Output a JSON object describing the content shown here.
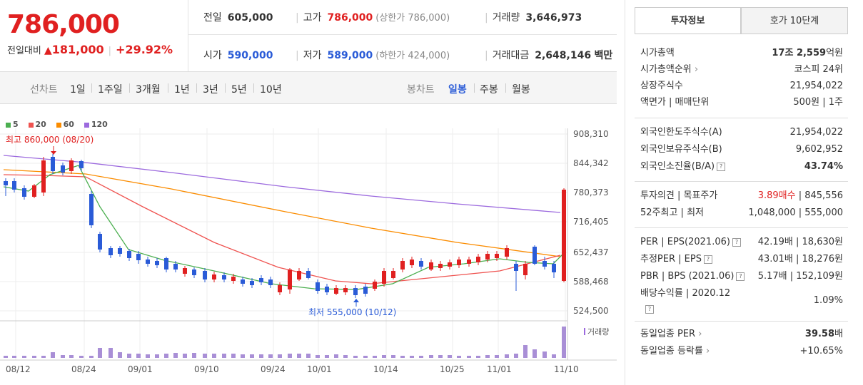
{
  "header": {
    "price": "786,000",
    "change_label": "전일대비",
    "change_amount": "181,000",
    "change_pct": "+29.92%",
    "prev_label": "전일",
    "prev_value": "605,000",
    "high_label": "고가",
    "high_value": "786,000",
    "upper_limit": "(상한가 786,000)",
    "volume_label": "거래량",
    "volume_value": "3,646,973",
    "open_label": "시가",
    "open_value": "590,000",
    "low_label": "저가",
    "low_value": "589,000",
    "lower_limit": "(하한가 424,000)",
    "amount_label": "거래대금",
    "amount_value": "2,648,146",
    "amount_unit": "백만"
  },
  "period_bar": {
    "line_label": "선차트",
    "periods": [
      "1일",
      "1주일",
      "3개월",
      "1년",
      "3년",
      "5년",
      "10년"
    ],
    "candle_label": "봉차트",
    "candles": [
      "일봉",
      "주봉",
      "월봉"
    ],
    "active_candle": "일봉"
  },
  "legend": [
    {
      "label": "5",
      "color": "#4caf50"
    },
    {
      "label": "20",
      "color": "#ef5350"
    },
    {
      "label": "60",
      "color": "#fb8c00"
    },
    {
      "label": "120",
      "color": "#9c6ade"
    }
  ],
  "chart_data": {
    "type": "candlestick",
    "y_ticks": [
      "908,310",
      "844,342",
      "780,373",
      "716,405",
      "652,437",
      "588,468",
      "524,500"
    ],
    "x_ticks": [
      "08/12",
      "08/24",
      "09/01",
      "09/10",
      "09/24",
      "10/01",
      "10/14",
      "10/25",
      "11/01",
      "11/10"
    ],
    "high_annotation": "최고 860,000 (08/20)",
    "low_annotation": "최저 555,000 (10/12)",
    "volume_label": "거래량",
    "colors": {
      "up": "#e02020",
      "down": "#2a5bd7"
    }
  },
  "panel": {
    "tab_invest": "투자정보",
    "tab_quote": "호가 10단계",
    "rows": [
      {
        "k": "시가총액",
        "v_bold": "17조 2,559",
        "v": "억원"
      },
      {
        "k": "시가총액순위",
        "arrow": "›",
        "v": "코스피 24위"
      },
      {
        "k": "상장주식수",
        "v": "21,954,022"
      },
      {
        "k": "액면가 | 매매단위",
        "v": "500원 | 1주"
      },
      {
        "k": "외국인한도주식수(A)",
        "v": "21,954,022"
      },
      {
        "k": "외국인보유주식수(B)",
        "v": "9,602,952"
      },
      {
        "k": "외국인소진율(B/A)",
        "q": "?",
        "v_bold": "43.74%"
      },
      {
        "k": "투자의견 | 목표주가",
        "v_red": "3.89매수",
        "v": " | 845,556"
      },
      {
        "k": "52주최고 | 최저",
        "v": "1,048,000 | 555,000"
      },
      {
        "k": "PER | EPS(2021.06)",
        "q": "?",
        "v": "42.19배 | 18,630원"
      },
      {
        "k": "추정PER | EPS",
        "q": "?",
        "v": "43.01배 | 18,276원"
      },
      {
        "k": "PBR | BPS (2021.06)",
        "q": "?",
        "v": "5.17배 | 152,109원"
      },
      {
        "k": "배당수익률 | 2020.12",
        "v": "1.09%"
      },
      {
        "k": "동일업종 PER",
        "arrow": "›",
        "v_bold": "39.58",
        "v": "배"
      },
      {
        "k": "동일업종 등락률",
        "arrow": "›",
        "v_red": "+10.65%"
      }
    ]
  }
}
